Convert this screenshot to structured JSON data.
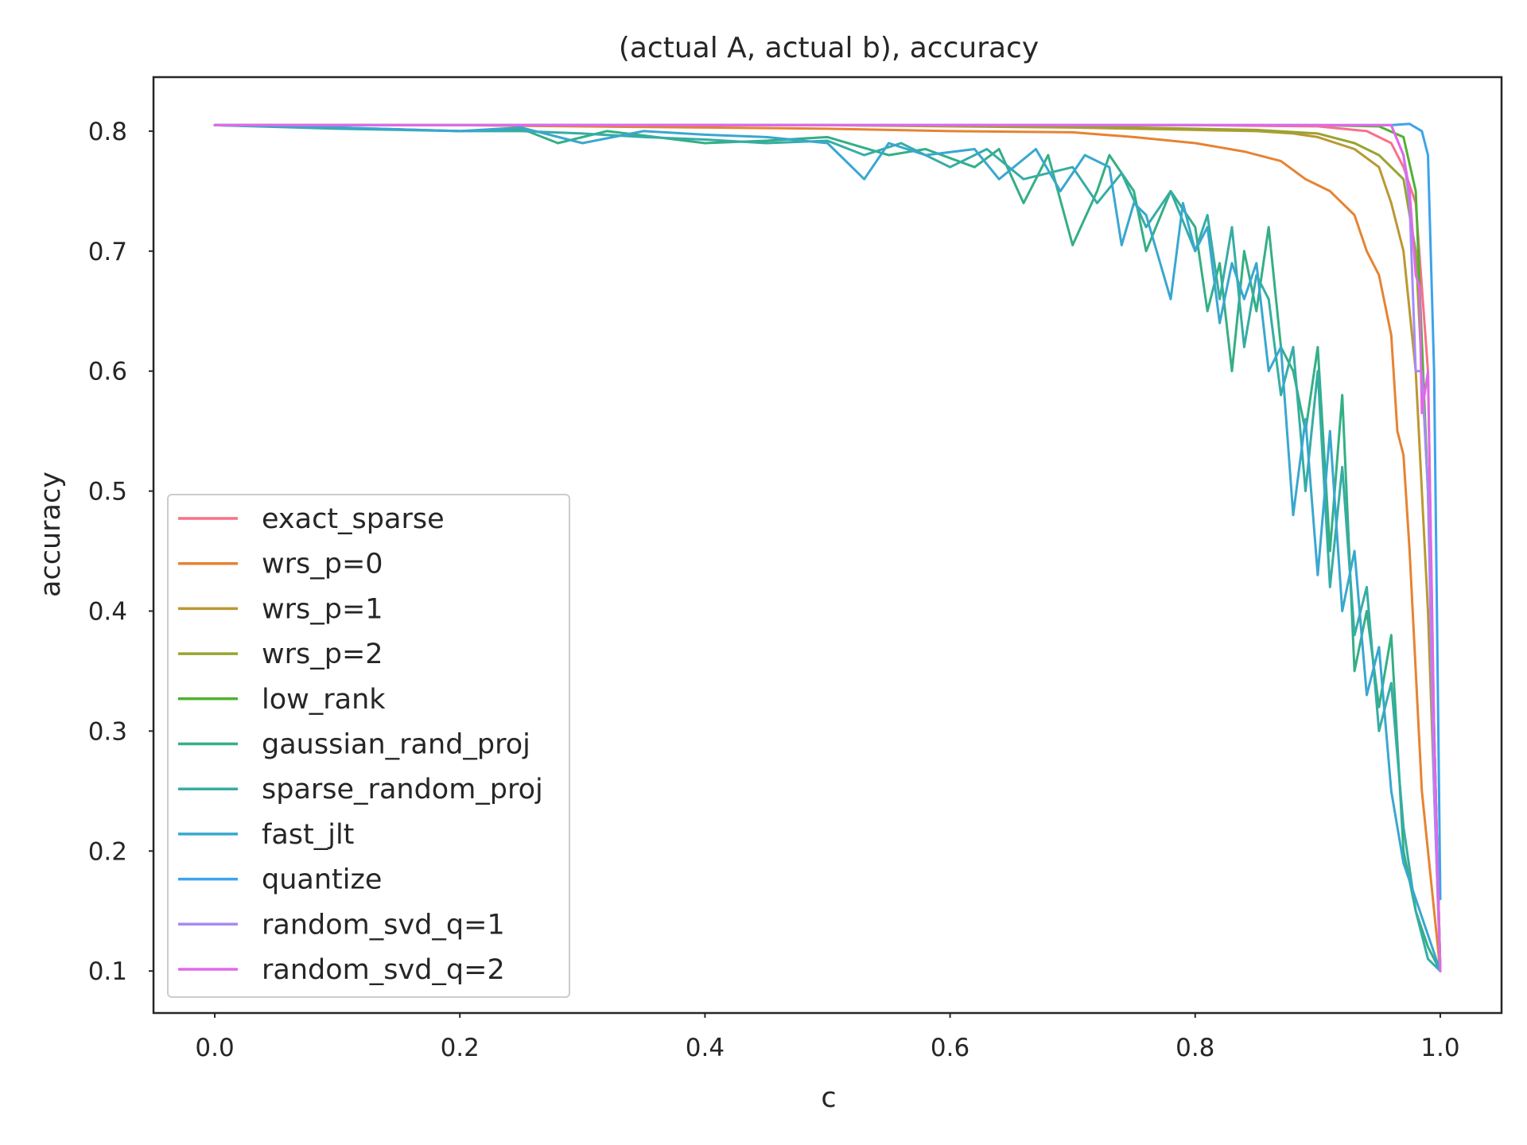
{
  "chart_data": {
    "type": "line",
    "title": "(actual A, actual b), accuracy",
    "xlabel": "c",
    "ylabel": "accuracy",
    "xlim": [
      -0.05,
      1.05
    ],
    "ylim": [
      0.065,
      0.845
    ],
    "xticks": [
      0.0,
      0.2,
      0.4,
      0.6,
      0.8,
      1.0
    ],
    "xtick_labels": [
      "0.0",
      "0.2",
      "0.4",
      "0.6",
      "0.8",
      "1.0"
    ],
    "yticks": [
      0.1,
      0.2,
      0.3,
      0.4,
      0.5,
      0.6,
      0.7,
      0.8
    ],
    "ytick_labels": [
      "0.1",
      "0.2",
      "0.3",
      "0.4",
      "0.5",
      "0.6",
      "0.7",
      "0.8"
    ],
    "grid": false,
    "legend_position": "lower-left",
    "series": [
      {
        "name": "exact_sparse",
        "color": "#f77189",
        "points": [
          [
            0,
            0.805
          ],
          [
            0.2,
            0.805
          ],
          [
            0.4,
            0.805
          ],
          [
            0.6,
            0.805
          ],
          [
            0.8,
            0.805
          ],
          [
            0.9,
            0.804
          ],
          [
            0.94,
            0.8
          ],
          [
            0.96,
            0.79
          ],
          [
            0.97,
            0.77
          ],
          [
            0.98,
            0.74
          ],
          [
            0.99,
            0.6
          ],
          [
            0.995,
            0.3
          ],
          [
            1.0,
            0.1
          ]
        ]
      },
      {
        "name": "wrs_p=0",
        "color": "#e68332",
        "points": [
          [
            0,
            0.805
          ],
          [
            0.2,
            0.805
          ],
          [
            0.4,
            0.803
          ],
          [
            0.5,
            0.802
          ],
          [
            0.6,
            0.8
          ],
          [
            0.7,
            0.799
          ],
          [
            0.75,
            0.795
          ],
          [
            0.8,
            0.79
          ],
          [
            0.84,
            0.783
          ],
          [
            0.87,
            0.775
          ],
          [
            0.89,
            0.76
          ],
          [
            0.91,
            0.75
          ],
          [
            0.93,
            0.73
          ],
          [
            0.94,
            0.7
          ],
          [
            0.95,
            0.68
          ],
          [
            0.96,
            0.63
          ],
          [
            0.965,
            0.55
          ],
          [
            0.97,
            0.53
          ],
          [
            0.975,
            0.45
          ],
          [
            0.98,
            0.35
          ],
          [
            0.985,
            0.25
          ],
          [
            0.99,
            0.2
          ],
          [
            1.0,
            0.1
          ]
        ]
      },
      {
        "name": "wrs_p=1",
        "color": "#bb9832",
        "points": [
          [
            0,
            0.805
          ],
          [
            0.3,
            0.805
          ],
          [
            0.5,
            0.805
          ],
          [
            0.7,
            0.803
          ],
          [
            0.8,
            0.801
          ],
          [
            0.85,
            0.8
          ],
          [
            0.88,
            0.798
          ],
          [
            0.9,
            0.795
          ],
          [
            0.93,
            0.785
          ],
          [
            0.95,
            0.77
          ],
          [
            0.96,
            0.74
          ],
          [
            0.97,
            0.7
          ],
          [
            0.98,
            0.6
          ],
          [
            0.99,
            0.4
          ],
          [
            1.0,
            0.1
          ]
        ]
      },
      {
        "name": "wrs_p=2",
        "color": "#97a431",
        "points": [
          [
            0,
            0.805
          ],
          [
            0.3,
            0.805
          ],
          [
            0.5,
            0.805
          ],
          [
            0.7,
            0.804
          ],
          [
            0.8,
            0.802
          ],
          [
            0.85,
            0.801
          ],
          [
            0.9,
            0.798
          ],
          [
            0.93,
            0.79
          ],
          [
            0.95,
            0.78
          ],
          [
            0.97,
            0.76
          ],
          [
            0.98,
            0.7
          ],
          [
            0.99,
            0.5
          ],
          [
            1.0,
            0.1
          ]
        ]
      },
      {
        "name": "low_rank",
        "color": "#50b131",
        "points": [
          [
            0,
            0.805
          ],
          [
            0.5,
            0.805
          ],
          [
            0.9,
            0.805
          ],
          [
            0.95,
            0.804
          ],
          [
            0.97,
            0.795
          ],
          [
            0.98,
            0.75
          ],
          [
            0.99,
            0.5
          ],
          [
            0.995,
            0.3
          ],
          [
            1.0,
            0.1
          ]
        ]
      },
      {
        "name": "gaussian_rand_proj",
        "color": "#34af84",
        "points": [
          [
            0,
            0.805
          ],
          [
            0.1,
            0.803
          ],
          [
            0.2,
            0.8
          ],
          [
            0.25,
            0.802
          ],
          [
            0.28,
            0.79
          ],
          [
            0.32,
            0.8
          ],
          [
            0.36,
            0.795
          ],
          [
            0.4,
            0.79
          ],
          [
            0.45,
            0.792
          ],
          [
            0.5,
            0.795
          ],
          [
            0.55,
            0.78
          ],
          [
            0.58,
            0.785
          ],
          [
            0.62,
            0.77
          ],
          [
            0.64,
            0.785
          ],
          [
            0.66,
            0.74
          ],
          [
            0.68,
            0.78
          ],
          [
            0.7,
            0.705
          ],
          [
            0.72,
            0.75
          ],
          [
            0.73,
            0.78
          ],
          [
            0.75,
            0.75
          ],
          [
            0.76,
            0.7
          ],
          [
            0.78,
            0.75
          ],
          [
            0.8,
            0.72
          ],
          [
            0.81,
            0.65
          ],
          [
            0.82,
            0.69
          ],
          [
            0.83,
            0.6
          ],
          [
            0.84,
            0.7
          ],
          [
            0.85,
            0.65
          ],
          [
            0.86,
            0.72
          ],
          [
            0.87,
            0.62
          ],
          [
            0.88,
            0.6
          ],
          [
            0.89,
            0.55
          ],
          [
            0.9,
            0.62
          ],
          [
            0.91,
            0.45
          ],
          [
            0.92,
            0.58
          ],
          [
            0.93,
            0.35
          ],
          [
            0.94,
            0.4
          ],
          [
            0.95,
            0.32
          ],
          [
            0.96,
            0.38
          ],
          [
            0.97,
            0.2
          ],
          [
            0.98,
            0.15
          ],
          [
            0.99,
            0.12
          ],
          [
            1.0,
            0.1
          ]
        ]
      },
      {
        "name": "sparse_random_proj",
        "color": "#36ada4",
        "points": [
          [
            0,
            0.805
          ],
          [
            0.1,
            0.802
          ],
          [
            0.2,
            0.8
          ],
          [
            0.25,
            0.8
          ],
          [
            0.3,
            0.798
          ],
          [
            0.35,
            0.795
          ],
          [
            0.4,
            0.793
          ],
          [
            0.45,
            0.79
          ],
          [
            0.5,
            0.792
          ],
          [
            0.53,
            0.78
          ],
          [
            0.56,
            0.79
          ],
          [
            0.6,
            0.77
          ],
          [
            0.63,
            0.785
          ],
          [
            0.66,
            0.76
          ],
          [
            0.7,
            0.77
          ],
          [
            0.72,
            0.74
          ],
          [
            0.74,
            0.765
          ],
          [
            0.76,
            0.72
          ],
          [
            0.78,
            0.75
          ],
          [
            0.8,
            0.7
          ],
          [
            0.81,
            0.73
          ],
          [
            0.82,
            0.66
          ],
          [
            0.83,
            0.72
          ],
          [
            0.84,
            0.62
          ],
          [
            0.85,
            0.68
          ],
          [
            0.86,
            0.66
          ],
          [
            0.87,
            0.58
          ],
          [
            0.88,
            0.62
          ],
          [
            0.89,
            0.5
          ],
          [
            0.9,
            0.6
          ],
          [
            0.91,
            0.42
          ],
          [
            0.92,
            0.52
          ],
          [
            0.93,
            0.38
          ],
          [
            0.94,
            0.42
          ],
          [
            0.95,
            0.3
          ],
          [
            0.96,
            0.34
          ],
          [
            0.97,
            0.22
          ],
          [
            0.98,
            0.15
          ],
          [
            0.99,
            0.11
          ],
          [
            1.0,
            0.1
          ]
        ]
      },
      {
        "name": "fast_jlt",
        "color": "#39a7d0",
        "points": [
          [
            0,
            0.805
          ],
          [
            0.1,
            0.803
          ],
          [
            0.2,
            0.8
          ],
          [
            0.25,
            0.803
          ],
          [
            0.3,
            0.79
          ],
          [
            0.35,
            0.8
          ],
          [
            0.4,
            0.797
          ],
          [
            0.45,
            0.795
          ],
          [
            0.5,
            0.79
          ],
          [
            0.53,
            0.76
          ],
          [
            0.55,
            0.79
          ],
          [
            0.58,
            0.78
          ],
          [
            0.62,
            0.785
          ],
          [
            0.64,
            0.76
          ],
          [
            0.67,
            0.785
          ],
          [
            0.69,
            0.75
          ],
          [
            0.71,
            0.78
          ],
          [
            0.73,
            0.77
          ],
          [
            0.74,
            0.705
          ],
          [
            0.75,
            0.74
          ],
          [
            0.76,
            0.73
          ],
          [
            0.78,
            0.66
          ],
          [
            0.79,
            0.74
          ],
          [
            0.8,
            0.7
          ],
          [
            0.81,
            0.72
          ],
          [
            0.82,
            0.64
          ],
          [
            0.83,
            0.69
          ],
          [
            0.84,
            0.66
          ],
          [
            0.85,
            0.69
          ],
          [
            0.86,
            0.6
          ],
          [
            0.87,
            0.62
          ],
          [
            0.88,
            0.48
          ],
          [
            0.89,
            0.56
          ],
          [
            0.9,
            0.43
          ],
          [
            0.91,
            0.55
          ],
          [
            0.92,
            0.4
          ],
          [
            0.93,
            0.45
          ],
          [
            0.94,
            0.33
          ],
          [
            0.95,
            0.37
          ],
          [
            0.96,
            0.25
          ],
          [
            0.97,
            0.19
          ],
          [
            0.98,
            0.16
          ],
          [
            0.99,
            0.13
          ],
          [
            1.0,
            0.1
          ]
        ]
      },
      {
        "name": "quantize",
        "color": "#3ba3ec",
        "points": [
          [
            0,
            0.805
          ],
          [
            0.3,
            0.805
          ],
          [
            0.6,
            0.805
          ],
          [
            0.9,
            0.805
          ],
          [
            0.96,
            0.805
          ],
          [
            0.975,
            0.806
          ],
          [
            0.985,
            0.8
          ],
          [
            0.99,
            0.78
          ],
          [
            0.995,
            0.6
          ],
          [
            1.0,
            0.16
          ]
        ]
      },
      {
        "name": "random_svd_q=1",
        "color": "#a48cf4",
        "points": [
          [
            0,
            0.805
          ],
          [
            0.3,
            0.805
          ],
          [
            0.6,
            0.805
          ],
          [
            0.9,
            0.805
          ],
          [
            0.96,
            0.805
          ],
          [
            0.97,
            0.78
          ],
          [
            0.975,
            0.74
          ],
          [
            0.98,
            0.6
          ],
          [
            0.985,
            0.6
          ],
          [
            0.99,
            0.5
          ],
          [
            0.995,
            0.25
          ],
          [
            1.0,
            0.1
          ]
        ]
      },
      {
        "name": "random_svd_q=2",
        "color": "#e168e8",
        "points": [
          [
            0,
            0.805
          ],
          [
            0.3,
            0.805
          ],
          [
            0.6,
            0.805
          ],
          [
            0.9,
            0.805
          ],
          [
            0.96,
            0.805
          ],
          [
            0.97,
            0.78
          ],
          [
            0.975,
            0.75
          ],
          [
            0.98,
            0.68
          ],
          [
            0.983,
            0.67
          ],
          [
            0.985,
            0.565
          ],
          [
            0.99,
            0.6
          ],
          [
            0.995,
            0.3
          ],
          [
            1.0,
            0.1
          ]
        ]
      }
    ]
  }
}
